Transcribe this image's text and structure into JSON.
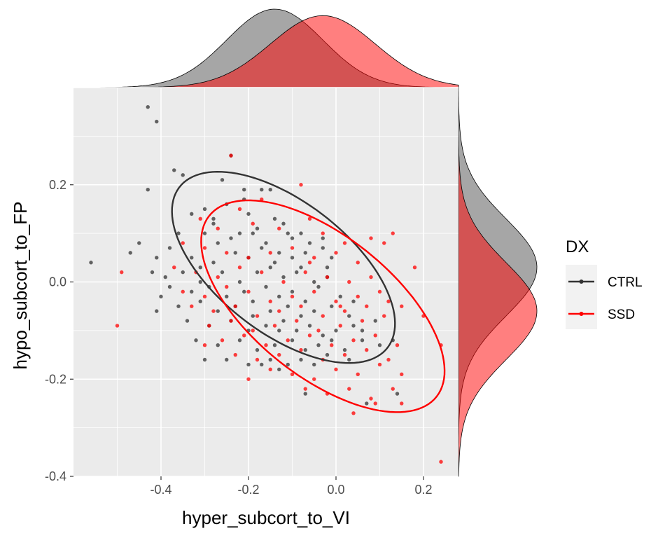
{
  "chart_data": {
    "type": "scatter",
    "subtype": "scatter with 95% data ellipses and marginal density plots",
    "xlabel": "hyper_subcort_to_VI",
    "ylabel": "hypo_subcort_to_FP",
    "xlim": [
      -0.6,
      0.28
    ],
    "ylim": [
      -0.4,
      0.4
    ],
    "x_ticks": [
      -0.4,
      -0.2,
      0.0,
      0.2
    ],
    "x_tick_labels": [
      "-0.4",
      "-0.2",
      "0.0",
      "0.2"
    ],
    "y_ticks": [
      -0.4,
      -0.2,
      0.0,
      0.2
    ],
    "y_tick_labels": [
      "-0.4",
      "-0.2",
      "0.0",
      "0.2"
    ],
    "grid": true,
    "background": "#ebebeb",
    "legend": {
      "title": "DX",
      "position": "right",
      "entries": [
        {
          "label": "CTRL",
          "color": "#333333"
        },
        {
          "label": "SSD",
          "color": "#ff0000"
        }
      ]
    },
    "series": [
      {
        "name": "CTRL",
        "color": "#333333",
        "fill": "#4d4d4d",
        "ellipse": {
          "center": [
            -0.12,
            0.03
          ],
          "semi_axes": [
            0.29,
            0.14
          ],
          "angle_deg": -33
        },
        "x_density": {
          "mean": -0.14,
          "sd": 0.11
        },
        "y_density": {
          "mean": 0.03,
          "sd": 0.1
        },
        "points": [
          [
            -0.43,
            0.36
          ],
          [
            -0.41,
            0.33
          ],
          [
            -0.24,
            0.26
          ],
          [
            -0.37,
            0.23
          ],
          [
            -0.35,
            0.22
          ],
          [
            -0.43,
            0.19
          ],
          [
            -0.26,
            0.21
          ],
          [
            -0.21,
            0.19
          ],
          [
            -0.17,
            0.19
          ],
          [
            -0.15,
            0.19
          ],
          [
            -0.3,
            0.15
          ],
          [
            -0.28,
            0.13
          ],
          [
            -0.33,
            0.14
          ],
          [
            -0.25,
            0.16
          ],
          [
            -0.2,
            0.14
          ],
          [
            -0.14,
            0.13
          ],
          [
            -0.12,
            0.12
          ],
          [
            -0.08,
            0.1
          ],
          [
            -0.36,
            0.1
          ],
          [
            -0.3,
            0.1
          ],
          [
            -0.27,
            0.08
          ],
          [
            -0.24,
            0.09
          ],
          [
            -0.19,
            0.1
          ],
          [
            -0.16,
            0.08
          ],
          [
            -0.1,
            0.09
          ],
          [
            -0.06,
            0.08
          ],
          [
            -0.03,
            0.09
          ],
          [
            -0.45,
            0.08
          ],
          [
            -0.47,
            0.06
          ],
          [
            -0.41,
            0.05
          ],
          [
            -0.38,
            0.07
          ],
          [
            -0.33,
            0.05
          ],
          [
            -0.28,
            0.04
          ],
          [
            -0.23,
            0.06
          ],
          [
            -0.2,
            0.05
          ],
          [
            -0.17,
            0.07
          ],
          [
            -0.13,
            0.06
          ],
          [
            -0.1,
            0.05
          ],
          [
            -0.07,
            0.06
          ],
          [
            -0.03,
            0.07
          ],
          [
            -0.01,
            0.05
          ],
          [
            -0.56,
            0.04
          ],
          [
            -0.42,
            0.02
          ],
          [
            -0.39,
            0.01
          ],
          [
            -0.35,
            0.02
          ],
          [
            -0.31,
            0.03
          ],
          [
            -0.26,
            0.02
          ],
          [
            -0.22,
            0.0
          ],
          [
            -0.18,
            0.02
          ],
          [
            -0.15,
            0.03
          ],
          [
            -0.12,
            0.01
          ],
          [
            -0.09,
            0.02
          ],
          [
            -0.05,
            0.0
          ],
          [
            -0.02,
            0.03
          ],
          [
            -0.38,
            -0.01
          ],
          [
            -0.33,
            -0.02
          ],
          [
            -0.29,
            -0.01
          ],
          [
            -0.25,
            -0.03
          ],
          [
            -0.21,
            -0.02
          ],
          [
            -0.16,
            -0.01
          ],
          [
            -0.13,
            -0.03
          ],
          [
            -0.1,
            -0.02
          ],
          [
            -0.07,
            -0.04
          ],
          [
            -0.04,
            -0.01
          ],
          [
            0.01,
            -0.03
          ],
          [
            -0.4,
            -0.03
          ],
          [
            -0.36,
            -0.05
          ],
          [
            -0.31,
            -0.04
          ],
          [
            -0.27,
            -0.06
          ],
          [
            -0.23,
            -0.05
          ],
          [
            -0.19,
            -0.04
          ],
          [
            -0.15,
            -0.06
          ],
          [
            -0.11,
            -0.05
          ],
          [
            -0.08,
            -0.07
          ],
          [
            -0.05,
            -0.06
          ],
          [
            -0.01,
            -0.05
          ],
          [
            0.03,
            -0.07
          ],
          [
            -0.41,
            -0.06
          ],
          [
            -0.34,
            -0.08
          ],
          [
            -0.29,
            -0.09
          ],
          [
            -0.24,
            -0.08
          ],
          [
            -0.2,
            -0.1
          ],
          [
            -0.16,
            -0.09
          ],
          [
            -0.12,
            -0.08
          ],
          [
            -0.09,
            -0.1
          ],
          [
            -0.06,
            -0.09
          ],
          [
            -0.03,
            -0.11
          ],
          [
            0.0,
            -0.1
          ],
          [
            0.04,
            -0.09
          ],
          [
            -0.32,
            -0.12
          ],
          [
            -0.27,
            -0.13
          ],
          [
            -0.22,
            -0.12
          ],
          [
            -0.18,
            -0.14
          ],
          [
            -0.14,
            -0.13
          ],
          [
            -0.1,
            -0.12
          ],
          [
            -0.07,
            -0.14
          ],
          [
            -0.04,
            -0.13
          ],
          [
            -0.01,
            -0.12
          ],
          [
            0.02,
            -0.14
          ],
          [
            0.06,
            -0.12
          ],
          [
            -0.25,
            -0.16
          ],
          [
            -0.2,
            -0.17
          ],
          [
            -0.15,
            -0.16
          ],
          [
            -0.11,
            -0.17
          ],
          [
            -0.08,
            -0.16
          ],
          [
            -0.05,
            -0.17
          ],
          [
            -0.02,
            -0.15
          ],
          [
            0.03,
            -0.16
          ],
          [
            0.1,
            -0.13
          ],
          [
            -0.3,
            -0.16
          ],
          [
            -0.13,
            -0.18
          ],
          [
            -0.17,
            -0.17
          ],
          [
            -0.07,
            -0.23
          ],
          [
            0.07,
            -0.25
          ],
          [
            0.14,
            -0.23
          ],
          [
            -0.21,
            0.17
          ],
          [
            -0.18,
            0.11
          ],
          [
            -0.22,
            0.1
          ],
          [
            -0.11,
            0.1
          ],
          [
            -0.28,
            0.12
          ],
          [
            -0.31,
            0.0
          ],
          [
            -0.14,
            0.04
          ],
          [
            -0.08,
            0.03
          ],
          [
            -0.02,
            0.01
          ],
          [
            0.04,
            -0.04
          ],
          [
            -0.19,
            -0.07
          ],
          [
            -0.13,
            -0.1
          ],
          [
            0.06,
            -0.1
          ],
          [
            0.09,
            -0.08
          ],
          [
            0.13,
            -0.12
          ]
        ]
      },
      {
        "name": "SSD",
        "color": "#ff0000",
        "fill": "#ff0000",
        "ellipse": {
          "center": [
            -0.03,
            -0.05
          ],
          "semi_axes": [
            0.32,
            0.15
          ],
          "angle_deg": -34
        },
        "x_density": {
          "mean": -0.03,
          "sd": 0.12
        },
        "y_density": {
          "mean": -0.06,
          "sd": 0.1
        },
        "points": [
          [
            -0.24,
            0.26
          ],
          [
            -0.08,
            0.2
          ],
          [
            -0.17,
            0.17
          ],
          [
            -0.22,
            0.15
          ],
          [
            -0.31,
            0.13
          ],
          [
            -0.27,
            0.11
          ],
          [
            -0.19,
            0.12
          ],
          [
            -0.13,
            0.11
          ],
          [
            -0.06,
            0.13
          ],
          [
            -0.03,
            0.1
          ],
          [
            0.02,
            0.08
          ],
          [
            0.08,
            0.09
          ],
          [
            0.13,
            0.1
          ],
          [
            0.11,
            0.08
          ],
          [
            -0.35,
            0.08
          ],
          [
            -0.3,
            0.07
          ],
          [
            -0.25,
            0.06
          ],
          [
            -0.2,
            0.05
          ],
          [
            -0.15,
            0.06
          ],
          [
            -0.1,
            0.07
          ],
          [
            -0.05,
            0.05
          ],
          [
            0.0,
            0.06
          ],
          [
            0.05,
            0.04
          ],
          [
            0.18,
            0.03
          ],
          [
            -0.49,
            0.02
          ],
          [
            -0.37,
            0.03
          ],
          [
            -0.32,
            0.02
          ],
          [
            -0.27,
            0.01
          ],
          [
            -0.22,
            0.03
          ],
          [
            -0.17,
            0.02
          ],
          [
            -0.12,
            0.0
          ],
          [
            -0.07,
            0.02
          ],
          [
            -0.02,
            0.01
          ],
          [
            0.03,
            0.0
          ],
          [
            0.08,
            0.01
          ],
          [
            -0.35,
            -0.02
          ],
          [
            -0.3,
            -0.03
          ],
          [
            -0.25,
            -0.01
          ],
          [
            -0.2,
            -0.02
          ],
          [
            -0.15,
            -0.04
          ],
          [
            -0.1,
            -0.03
          ],
          [
            -0.05,
            -0.02
          ],
          [
            0.0,
            -0.04
          ],
          [
            0.05,
            -0.03
          ],
          [
            0.1,
            -0.02
          ],
          [
            -0.33,
            -0.05
          ],
          [
            -0.28,
            -0.06
          ],
          [
            -0.23,
            -0.05
          ],
          [
            -0.18,
            -0.07
          ],
          [
            -0.13,
            -0.06
          ],
          [
            -0.08,
            -0.05
          ],
          [
            -0.03,
            -0.07
          ],
          [
            0.02,
            -0.06
          ],
          [
            0.07,
            -0.05
          ],
          [
            0.15,
            -0.05
          ],
          [
            -0.5,
            -0.09
          ],
          [
            -0.29,
            -0.09
          ],
          [
            -0.24,
            -0.08
          ],
          [
            -0.19,
            -0.1
          ],
          [
            -0.14,
            -0.09
          ],
          [
            -0.09,
            -0.08
          ],
          [
            -0.04,
            -0.1
          ],
          [
            0.01,
            -0.09
          ],
          [
            0.06,
            -0.08
          ],
          [
            0.11,
            -0.07
          ],
          [
            0.2,
            -0.07
          ],
          [
            -0.26,
            -0.12
          ],
          [
            -0.21,
            -0.11
          ],
          [
            -0.16,
            -0.13
          ],
          [
            -0.11,
            -0.12
          ],
          [
            -0.06,
            -0.11
          ],
          [
            -0.01,
            -0.13
          ],
          [
            0.04,
            -0.12
          ],
          [
            0.09,
            -0.11
          ],
          [
            0.14,
            -0.13
          ],
          [
            -0.3,
            -0.13
          ],
          [
            -0.23,
            -0.15
          ],
          [
            -0.18,
            -0.16
          ],
          [
            -0.13,
            -0.15
          ],
          [
            -0.08,
            -0.14
          ],
          [
            -0.03,
            -0.16
          ],
          [
            0.02,
            -0.15
          ],
          [
            0.07,
            -0.14
          ],
          [
            0.12,
            -0.16
          ],
          [
            0.24,
            -0.13
          ],
          [
            -0.2,
            -0.2
          ],
          [
            -0.15,
            -0.18
          ],
          [
            -0.1,
            -0.19
          ],
          [
            -0.05,
            -0.2
          ],
          [
            0.0,
            -0.18
          ],
          [
            0.05,
            -0.19
          ],
          [
            0.1,
            -0.17
          ],
          [
            0.15,
            -0.19
          ],
          [
            -0.07,
            -0.22
          ],
          [
            -0.02,
            -0.23
          ],
          [
            0.03,
            -0.22
          ],
          [
            0.08,
            -0.24
          ],
          [
            0.13,
            -0.22
          ],
          [
            0.04,
            -0.27
          ],
          [
            0.09,
            -0.25
          ],
          [
            0.15,
            -0.25
          ],
          [
            0.24,
            -0.37
          ],
          [
            0.01,
            -0.05
          ],
          [
            -0.06,
            0.04
          ],
          [
            0.12,
            -0.04
          ]
        ]
      }
    ]
  }
}
